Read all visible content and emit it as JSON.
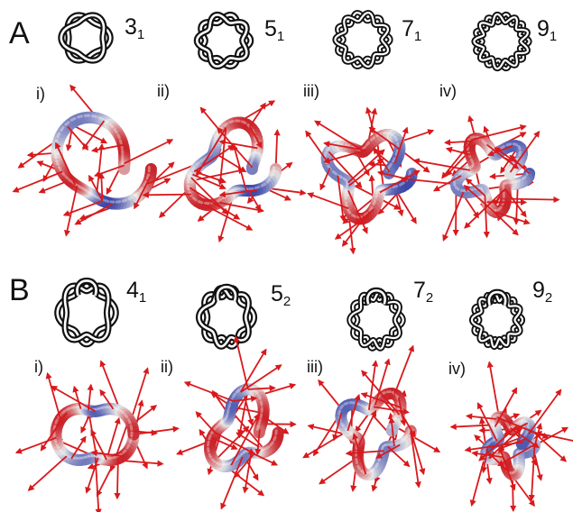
{
  "panels": [
    {
      "letter": "A",
      "knots": [
        {
          "base": "3",
          "sub": "1",
          "roman": "i)",
          "crossings": 3,
          "type": "torus"
        },
        {
          "base": "5",
          "sub": "1",
          "roman": "ii)",
          "crossings": 5,
          "type": "torus"
        },
        {
          "base": "7",
          "sub": "1",
          "roman": "iii)",
          "crossings": 7,
          "type": "torus"
        },
        {
          "base": "9",
          "sub": "1",
          "roman": "iv)",
          "crossings": 9,
          "type": "torus"
        }
      ]
    },
    {
      "letter": "B",
      "knots": [
        {
          "base": "4",
          "sub": "1",
          "roman": "i)",
          "crossings": 4,
          "type": "twist"
        },
        {
          "base": "5",
          "sub": "2",
          "roman": "ii)",
          "crossings": 5,
          "type": "twist"
        },
        {
          "base": "7",
          "sub": "2",
          "roman": "iii)",
          "crossings": 7,
          "type": "twist"
        },
        {
          "base": "9",
          "sub": "2",
          "roman": "iv)",
          "crossings": 9,
          "type": "twist"
        }
      ]
    }
  ],
  "colors": {
    "arrow": "#d9191c",
    "tube_red": "#c8242b",
    "tube_white": "#e6e6e6",
    "tube_blue": "#3b47a8",
    "outline": "#111111"
  }
}
